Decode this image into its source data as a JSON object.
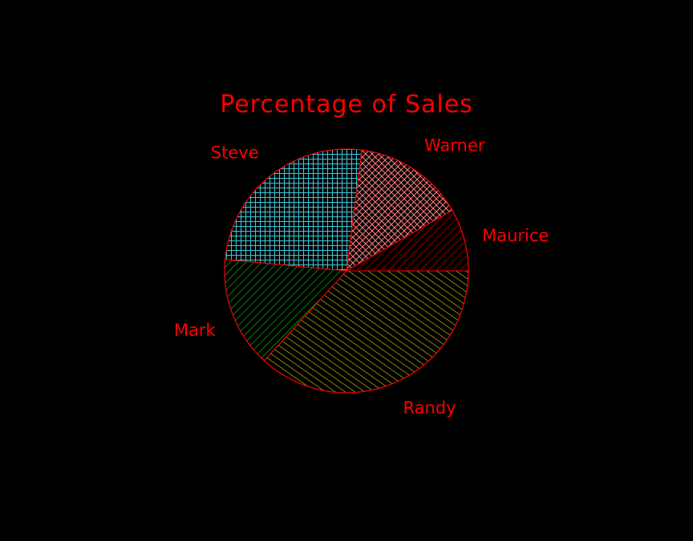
{
  "chart_data": {
    "type": "pie",
    "title": "Percentage of Sales",
    "unit": "%",
    "slices": [
      {
        "label": "Maurice",
        "value": 8.3,
        "color": "#ff0000",
        "pattern": "diag-left"
      },
      {
        "label": "Warner",
        "value": 14.7,
        "color": "#ff8080",
        "pattern": "crosshatch"
      },
      {
        "label": "Steve",
        "value": 25.5,
        "color": "#40c8d8",
        "pattern": "grid"
      },
      {
        "label": "Mark",
        "value": 14.7,
        "color": "#00ff00",
        "pattern": "diag-left"
      },
      {
        "label": "Randy",
        "value": 36.8,
        "color": "#ffff00",
        "pattern": "diag-right"
      }
    ],
    "outline_color": "#ff0000",
    "label_color": "#ff0000",
    "background": "#000000"
  }
}
